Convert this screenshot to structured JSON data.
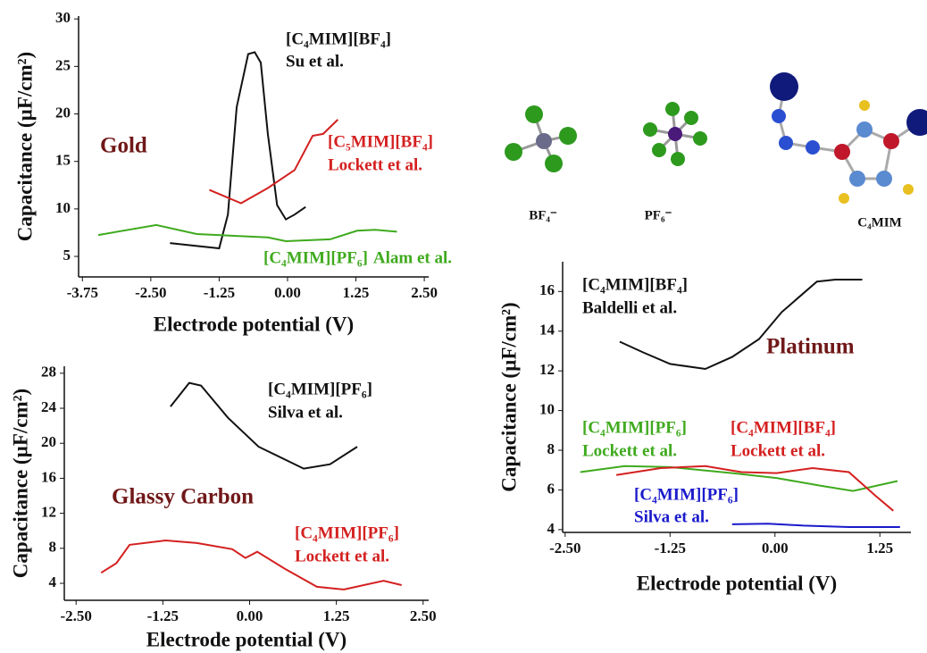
{
  "chart_data": [
    {
      "type": "line",
      "panel_label": "Gold",
      "x_label": "Electrode potential (V)",
      "y_label": "Capacitance (µF/cm²)",
      "xlim": [
        -3.82,
        2.58
      ],
      "ylim": [
        2.84,
        30.3
      ],
      "xticks": [
        {
          "value": -3.75,
          "label": "-3.75"
        },
        {
          "value": -2.5,
          "label": "-2.50"
        },
        {
          "value": -1.25,
          "label": "-1.25"
        },
        {
          "value": 0,
          "label": "0.00"
        },
        {
          "value": 1.25,
          "label": "1.25"
        },
        {
          "value": 2.5,
          "label": "2.50"
        }
      ],
      "yticks": [
        5,
        10,
        15,
        20,
        25,
        30
      ],
      "series": [
        {
          "name": "[C₄MIM][BF₄]",
          "source": "Su et al.",
          "color": "#111111",
          "x": [
            -2.15,
            -1.25,
            -1.09,
            -0.93,
            -0.72,
            -0.6,
            -0.49,
            -0.36,
            -0.19,
            -0.03,
            0.13,
            0.33
          ],
          "values": [
            6.4,
            5.85,
            9.4,
            20.7,
            26.3,
            26.5,
            25.4,
            17.9,
            10.4,
            8.9,
            9.4,
            10.2
          ]
        },
        {
          "name": "[C₅MIM][BF₄]",
          "source": "Lockett et al.",
          "color": "#d42020",
          "x": [
            -1.43,
            -0.85,
            -0.36,
            0.13,
            0.46,
            0.65,
            0.92
          ],
          "values": [
            12.0,
            10.6,
            12.2,
            14.1,
            17.7,
            17.9,
            19.4
          ]
        },
        {
          "name": "[C₄MIM][PF₆]",
          "source": "Alam et al.",
          "color": "#3faa1e",
          "x": [
            -3.46,
            -2.4,
            -1.66,
            -0.36,
            -0.03,
            0.78,
            1.27,
            1.6,
            2.0
          ],
          "values": [
            7.25,
            8.3,
            7.35,
            7.0,
            6.6,
            6.8,
            7.7,
            7.8,
            7.6
          ]
        }
      ]
    },
    {
      "type": "line",
      "panel_label": "Glassy Carbon",
      "x_label": "Electrode potential (V)",
      "y_label": "Capacitance (µF/cm²)",
      "xlim": [
        -2.67,
        2.58
      ],
      "ylim": [
        2.06,
        28.8
      ],
      "xticks": [
        {
          "value": -2.5,
          "label": "-2.50"
        },
        {
          "value": -1.25,
          "label": "-1.25"
        },
        {
          "value": 0,
          "label": "0.00"
        },
        {
          "value": 1.25,
          "label": "1.25"
        },
        {
          "value": 2.5,
          "label": "2.50"
        }
      ],
      "yticks": [
        4,
        8,
        12,
        16,
        20,
        24,
        28
      ],
      "series": [
        {
          "name": "[C₄MIM][PF₆]",
          "source": "Silva et al.",
          "color": "#111111",
          "x": [
            -1.14,
            -0.87,
            -0.7,
            -0.31,
            0.13,
            0.78,
            1.16,
            1.55
          ],
          "values": [
            24.2,
            26.9,
            26.6,
            22.9,
            19.6,
            17.1,
            17.6,
            19.6
          ]
        },
        {
          "name": "[C₄MIM][PF₆]",
          "source": "Lockett et al.",
          "color": "#d42020",
          "x": [
            -2.14,
            -1.92,
            -1.73,
            -1.21,
            -0.76,
            -0.25,
            -0.06,
            0.11,
            0.52,
            0.97,
            1.36,
            1.93,
            2.19
          ],
          "values": [
            5.2,
            6.3,
            8.4,
            8.9,
            8.6,
            7.9,
            6.9,
            7.6,
            5.6,
            3.6,
            3.3,
            4.3,
            3.8
          ]
        }
      ]
    },
    {
      "type": "line",
      "panel_label": "Platinum",
      "x_label": "Electrode potential (V)",
      "y_label": "Capacitance (µF/cm²)",
      "xlim": [
        -2.53,
        1.62
      ],
      "ylim": [
        3.86,
        17.5
      ],
      "xticks": [
        {
          "value": -2.5,
          "label": "-2.50"
        },
        {
          "value": -1.25,
          "label": "-1.25"
        },
        {
          "value": 0,
          "label": "0.00"
        },
        {
          "value": 1.25,
          "label": "1.25"
        }
      ],
      "yticks": [
        4,
        6,
        8,
        10,
        12,
        14,
        16
      ],
      "series": [
        {
          "name": "[C₄MIM][BF₄]",
          "source": "Baldelli et al.",
          "color": "#111111",
          "x": [
            -1.85,
            -1.57,
            -1.25,
            -0.83,
            -0.51,
            -0.19,
            0.08,
            0.5,
            0.72,
            1.04
          ],
          "values": [
            13.47,
            12.93,
            12.35,
            12.1,
            12.7,
            13.6,
            14.96,
            16.5,
            16.6,
            16.6
          ]
        },
        {
          "name": "[C₄MIM][PF₆]",
          "source": "Lockett et al.",
          "color": "#3faa1e",
          "x": [
            -2.32,
            -1.79,
            -1.25,
            -0.51,
            0.02,
            0.56,
            0.93,
            1.46
          ],
          "values": [
            6.9,
            7.2,
            7.15,
            6.85,
            6.6,
            6.2,
            5.95,
            6.45
          ]
        },
        {
          "name": "[C₄MIM][BF₄]",
          "source": "Lockett et al.",
          "color": "#d42020",
          "x": [
            -1.89,
            -1.36,
            -0.83,
            -0.4,
            0.02,
            0.45,
            0.88,
            1.2,
            1.41
          ],
          "values": [
            6.75,
            7.1,
            7.2,
            6.9,
            6.85,
            7.1,
            6.9,
            5.7,
            4.95
          ]
        },
        {
          "name": "[C₄MIM][PF₆]",
          "source": "Silva et al.",
          "color": "#1a1acc",
          "x": [
            -0.51,
            -0.08,
            0.34,
            0.88,
            1.49
          ],
          "values": [
            4.27,
            4.3,
            4.2,
            4.13,
            4.13
          ]
        }
      ]
    }
  ],
  "molecule_labels": [
    "BF₄⁻",
    "PF₆⁻",
    "C₄MIM"
  ]
}
